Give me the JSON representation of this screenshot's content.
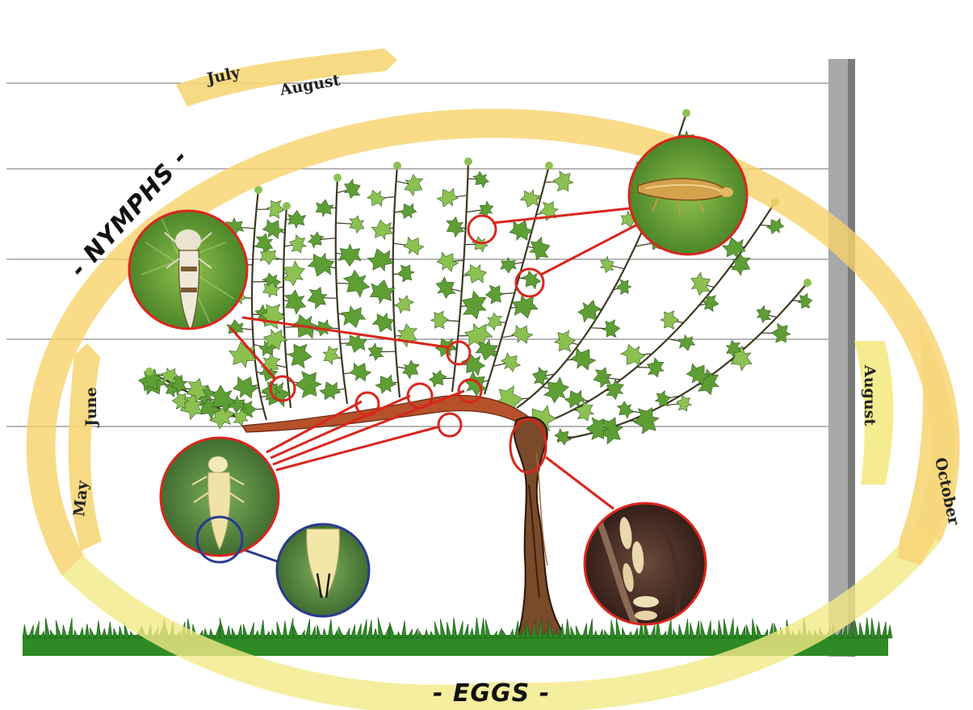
{
  "stages": {
    "nymphs": "- NYMPHS -",
    "eggs": "- EGGS -"
  },
  "months": {
    "july": "July",
    "august_top": "August",
    "may": "May",
    "june": "June",
    "august_right": "August",
    "october": "October"
  },
  "colors": {
    "cycle_ring": "#f7d26a",
    "arrow": "#f6d77a",
    "arrow_light": "#f3ea86",
    "leaf": "#5e9e35",
    "leaf_light": "#8cc152",
    "trunk": "#7a4a2a",
    "cordon": "#b5522b",
    "grass": "#2e8a25",
    "callout_red": "#d9261c",
    "callout_blue": "#2a3a8f",
    "post": "#9e9e9e"
  },
  "photo_insets": [
    {
      "subject": "adult-leafhopper",
      "border": "red"
    },
    {
      "subject": "older-nymph",
      "border": "red"
    },
    {
      "subject": "young-nymph",
      "border": "red"
    },
    {
      "subject": "nymph-detail",
      "border": "blue"
    },
    {
      "subject": "eggs-under-bark",
      "border": "red"
    }
  ]
}
